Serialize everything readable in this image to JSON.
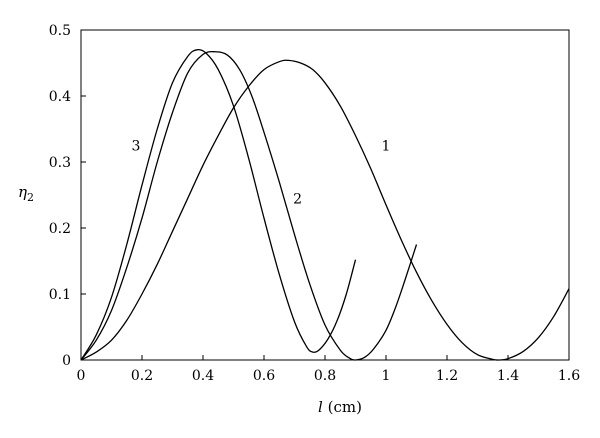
{
  "chart_data": {
    "type": "line",
    "title": "",
    "xlabel_italic": "l",
    "xlabel_unit": " (cm)",
    "ylabel_base": "η",
    "ylabel_sub": "2",
    "xlim": [
      0,
      1.6
    ],
    "ylim": [
      0,
      0.5
    ],
    "xticks": [
      0,
      0.2,
      0.4,
      0.6,
      0.8,
      1,
      1.2,
      1.4,
      1.6
    ],
    "xtick_labels": [
      "0",
      "0.2",
      "0.4",
      "0.6",
      "0.8",
      "1",
      "1.2",
      "1.4",
      "1.6"
    ],
    "yticks": [
      0,
      0.1,
      0.2,
      0.3,
      0.4,
      0.5
    ],
    "ytick_labels": [
      "0",
      "0.1",
      "0.2",
      "0.3",
      "0.4",
      "0.5"
    ],
    "grid": false,
    "series": [
      {
        "name": "1",
        "label_at": [
          1.0,
          0.325
        ],
        "points": [
          [
            0,
            0
          ],
          [
            0.05,
            0.012
          ],
          [
            0.1,
            0.03
          ],
          [
            0.15,
            0.06
          ],
          [
            0.2,
            0.1
          ],
          [
            0.25,
            0.145
          ],
          [
            0.3,
            0.195
          ],
          [
            0.35,
            0.245
          ],
          [
            0.4,
            0.295
          ],
          [
            0.45,
            0.34
          ],
          [
            0.5,
            0.382
          ],
          [
            0.55,
            0.415
          ],
          [
            0.6,
            0.44
          ],
          [
            0.65,
            0.452
          ],
          [
            0.68,
            0.454
          ],
          [
            0.72,
            0.45
          ],
          [
            0.76,
            0.44
          ],
          [
            0.8,
            0.42
          ],
          [
            0.85,
            0.385
          ],
          [
            0.9,
            0.34
          ],
          [
            0.95,
            0.29
          ],
          [
            1.0,
            0.235
          ],
          [
            1.05,
            0.182
          ],
          [
            1.1,
            0.133
          ],
          [
            1.15,
            0.09
          ],
          [
            1.2,
            0.054
          ],
          [
            1.25,
            0.026
          ],
          [
            1.3,
            0.008
          ],
          [
            1.35,
            0.001
          ],
          [
            1.37,
            0.0
          ],
          [
            1.4,
            0.002
          ],
          [
            1.45,
            0.013
          ],
          [
            1.5,
            0.034
          ],
          [
            1.55,
            0.066
          ],
          [
            1.6,
            0.108
          ]
        ]
      },
      {
        "name": "2",
        "label_at": [
          0.71,
          0.245
        ],
        "points": [
          [
            0,
            0
          ],
          [
            0.05,
            0.03
          ],
          [
            0.1,
            0.075
          ],
          [
            0.15,
            0.14
          ],
          [
            0.2,
            0.215
          ],
          [
            0.25,
            0.3
          ],
          [
            0.3,
            0.375
          ],
          [
            0.35,
            0.435
          ],
          [
            0.4,
            0.463
          ],
          [
            0.44,
            0.467
          ],
          [
            0.48,
            0.462
          ],
          [
            0.52,
            0.44
          ],
          [
            0.56,
            0.4
          ],
          [
            0.6,
            0.345
          ],
          [
            0.65,
            0.27
          ],
          [
            0.7,
            0.19
          ],
          [
            0.75,
            0.115
          ],
          [
            0.8,
            0.053
          ],
          [
            0.85,
            0.015
          ],
          [
            0.88,
            0.003
          ],
          [
            0.9,
            0.0
          ],
          [
            0.93,
            0.004
          ],
          [
            0.96,
            0.017
          ],
          [
            1.0,
            0.045
          ],
          [
            1.03,
            0.078
          ],
          [
            1.06,
            0.118
          ],
          [
            1.1,
            0.175
          ]
        ]
      },
      {
        "name": "3",
        "label_at": [
          0.18,
          0.325
        ],
        "points": [
          [
            0,
            0
          ],
          [
            0.05,
            0.038
          ],
          [
            0.1,
            0.095
          ],
          [
            0.15,
            0.175
          ],
          [
            0.2,
            0.265
          ],
          [
            0.25,
            0.35
          ],
          [
            0.3,
            0.42
          ],
          [
            0.35,
            0.46
          ],
          [
            0.38,
            0.47
          ],
          [
            0.41,
            0.465
          ],
          [
            0.45,
            0.44
          ],
          [
            0.5,
            0.385
          ],
          [
            0.55,
            0.305
          ],
          [
            0.6,
            0.215
          ],
          [
            0.65,
            0.13
          ],
          [
            0.7,
            0.058
          ],
          [
            0.74,
            0.02
          ],
          [
            0.76,
            0.012
          ],
          [
            0.78,
            0.015
          ],
          [
            0.81,
            0.032
          ],
          [
            0.84,
            0.06
          ],
          [
            0.87,
            0.1
          ],
          [
            0.9,
            0.152
          ]
        ]
      }
    ]
  }
}
